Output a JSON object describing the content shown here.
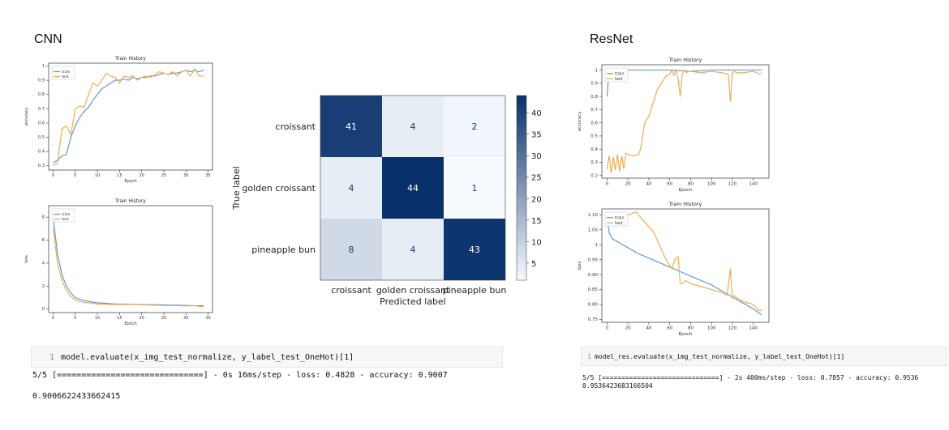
{
  "cnn": {
    "title": "CNN",
    "cell_line": "1",
    "code": "model.evaluate(x_img_test_normalize, y_label_test_OneHot)[1]",
    "output_progress": "5/5 [==============================] - 0s 16ms/step - loss: 0.4828 - accuracy: 0.9007",
    "output_result": "0.9006622433662415"
  },
  "resnet": {
    "title": "ResNet",
    "cell_line": "1",
    "code": "model_res.evaluate(x_img_test_normalize, y_label_test_OneHot)[1]",
    "output_progress": "5/5 [==============================] - 2s 400ms/step - loss: 0.7857 - accuracy: 0.9536",
    "output_result": "0.9536423683166504"
  },
  "colors": {
    "train": "#5b8fc9",
    "test": "#f0a64a"
  },
  "chart_data": [
    {
      "id": "cnn_acc",
      "type": "line",
      "title": "Train History",
      "xlabel": "Epoch",
      "ylabel": "accuracy",
      "xlim": [
        -1,
        36
      ],
      "ylim": [
        0.27,
        1.02
      ],
      "xticks": [
        0,
        5,
        10,
        15,
        20,
        25,
        30,
        35
      ],
      "yticks": [
        0.3,
        0.4,
        0.5,
        0.6,
        0.7,
        0.8,
        0.9,
        1.0
      ],
      "legend": "top-left",
      "series": [
        {
          "name": "train",
          "x": [
            0,
            1,
            2,
            3,
            4,
            5,
            6,
            7,
            8,
            9,
            10,
            11,
            12,
            13,
            14,
            15,
            16,
            17,
            18,
            19,
            20,
            21,
            22,
            23,
            24,
            25,
            26,
            27,
            28,
            29,
            30,
            31,
            32,
            33,
            34
          ],
          "y": [
            0.32,
            0.34,
            0.37,
            0.38,
            0.5,
            0.58,
            0.64,
            0.68,
            0.71,
            0.76,
            0.8,
            0.84,
            0.86,
            0.88,
            0.9,
            0.9,
            0.91,
            0.9,
            0.92,
            0.91,
            0.92,
            0.92,
            0.93,
            0.93,
            0.94,
            0.95,
            0.94,
            0.95,
            0.95,
            0.96,
            0.97,
            0.96,
            0.97,
            0.96,
            0.97
          ]
        },
        {
          "name": "test",
          "x": [
            0,
            1,
            2,
            3,
            4,
            5,
            6,
            7,
            8,
            9,
            10,
            11,
            12,
            13,
            14,
            15,
            16,
            17,
            18,
            19,
            20,
            21,
            22,
            23,
            24,
            25,
            26,
            27,
            28,
            29,
            30,
            31,
            32,
            33,
            34
          ],
          "y": [
            0.3,
            0.32,
            0.56,
            0.58,
            0.52,
            0.7,
            0.72,
            0.71,
            0.8,
            0.88,
            0.86,
            0.9,
            0.95,
            0.93,
            0.92,
            0.88,
            0.93,
            0.92,
            0.93,
            0.9,
            0.92,
            0.93,
            0.92,
            0.94,
            0.96,
            0.95,
            0.94,
            0.96,
            0.93,
            0.96,
            0.97,
            0.93,
            0.98,
            0.93,
            0.93
          ]
        }
      ]
    },
    {
      "id": "cnn_loss",
      "type": "line",
      "title": "Train History",
      "xlabel": "Epoch",
      "ylabel": "loss",
      "xlim": [
        -1,
        36
      ],
      "ylim": [
        -0.3,
        9
      ],
      "xticks": [
        0,
        5,
        10,
        15,
        20,
        25,
        30,
        35
      ],
      "yticks": [
        0,
        2,
        4,
        6,
        8
      ],
      "legend": "top-left",
      "series": [
        {
          "name": "train",
          "x": [
            0,
            1,
            2,
            3,
            4,
            5,
            6,
            7,
            8,
            9,
            10,
            12,
            14,
            16,
            18,
            20,
            22,
            24,
            26,
            28,
            30,
            32,
            34
          ],
          "y": [
            8.0,
            4.8,
            3.0,
            2.0,
            1.4,
            1.0,
            0.85,
            0.75,
            0.68,
            0.6,
            0.55,
            0.5,
            0.45,
            0.45,
            0.42,
            0.4,
            0.38,
            0.38,
            0.35,
            0.34,
            0.32,
            0.3,
            0.3
          ]
        },
        {
          "name": "test",
          "x": [
            0,
            1,
            2,
            3,
            4,
            5,
            6,
            7,
            8,
            9,
            10,
            12,
            14,
            16,
            18,
            20,
            22,
            24,
            26,
            28,
            30,
            32,
            34
          ],
          "y": [
            7.0,
            4.0,
            2.5,
            1.6,
            1.1,
            0.8,
            0.65,
            0.6,
            0.55,
            0.5,
            0.45,
            0.42,
            0.4,
            0.42,
            0.4,
            0.38,
            0.35,
            0.33,
            0.3,
            0.3,
            0.28,
            0.3,
            0.2
          ]
        }
      ]
    },
    {
      "id": "cnn_cm",
      "type": "heatmap",
      "xlabel": "Predicted label",
      "ylabel": "True label",
      "row_labels": [
        "croissant",
        "golden croissant",
        "pineapple bun"
      ],
      "col_labels": [
        "croissant",
        "golden croissant",
        "pineapple bun"
      ],
      "values": [
        [
          41,
          4,
          2
        ],
        [
          4,
          44,
          1
        ],
        [
          8,
          4,
          43
        ]
      ],
      "colorbar_range": [
        1,
        44
      ],
      "colorbar_ticks": [
        5,
        10,
        15,
        20,
        25,
        30,
        35,
        40
      ]
    },
    {
      "id": "res_acc",
      "type": "line",
      "title": "Train History",
      "xlabel": "Epoch",
      "ylabel": "accuracy",
      "xlim": [
        -5,
        155
      ],
      "ylim": [
        0.18,
        1.04
      ],
      "xticks": [
        0,
        20,
        40,
        60,
        80,
        100,
        120,
        140
      ],
      "yticks": [
        0.2,
        0.3,
        0.4,
        0.5,
        0.6,
        0.7,
        0.8,
        0.9,
        1.0
      ],
      "legend": "top-left",
      "series": [
        {
          "name": "train",
          "x": [
            0,
            2,
            4,
            10,
            20,
            40,
            60,
            80,
            100,
            120,
            140,
            148
          ],
          "y": [
            0.8,
            1.0,
            0.99,
            1.0,
            1.0,
            1.0,
            1.0,
            0.99,
            1.0,
            1.0,
            1.0,
            1.0
          ]
        },
        {
          "name": "test",
          "x": [
            0,
            2,
            4,
            6,
            8,
            10,
            12,
            14,
            16,
            18,
            20,
            25,
            30,
            32,
            34,
            36,
            40,
            44,
            48,
            52,
            56,
            60,
            62,
            64,
            66,
            68,
            70,
            72,
            74,
            76,
            78,
            80,
            90,
            100,
            110,
            116,
            118,
            120,
            122,
            124,
            130,
            140,
            146,
            148
          ],
          "y": [
            0.25,
            0.35,
            0.22,
            0.34,
            0.24,
            0.36,
            0.23,
            0.35,
            0.25,
            0.37,
            0.36,
            0.35,
            0.36,
            0.4,
            0.5,
            0.6,
            0.65,
            0.75,
            0.85,
            0.9,
            0.95,
            0.97,
            1.0,
            0.96,
            1.0,
            0.93,
            0.8,
            0.97,
            1.0,
            0.98,
            0.99,
            0.99,
            0.98,
            0.99,
            0.98,
            0.97,
            0.76,
            0.98,
            0.99,
            0.98,
            0.98,
            0.99,
            0.97,
            0.98
          ]
        }
      ]
    },
    {
      "id": "res_loss",
      "type": "line",
      "title": "Train History",
      "xlabel": "Epoch",
      "ylabel": "loss",
      "xlim": [
        -5,
        155
      ],
      "ylim": [
        0.74,
        1.12
      ],
      "xticks": [
        0,
        20,
        40,
        60,
        80,
        100,
        120,
        140
      ],
      "yticks": [
        0.75,
        0.8,
        0.85,
        0.9,
        0.95,
        1.0,
        1.05,
        1.1
      ],
      "legend": "top-left",
      "series": [
        {
          "name": "train",
          "x": [
            0,
            2,
            5,
            10,
            20,
            30,
            40,
            50,
            60,
            70,
            80,
            90,
            100,
            110,
            120,
            130,
            140,
            148
          ],
          "y": [
            1.1,
            1.04,
            1.02,
            1.01,
            0.99,
            0.97,
            0.955,
            0.94,
            0.925,
            0.91,
            0.895,
            0.88,
            0.865,
            0.845,
            0.825,
            0.805,
            0.785,
            0.765
          ]
        },
        {
          "name": "test",
          "x": [
            0,
            2,
            5,
            10,
            15,
            20,
            28,
            30,
            35,
            40,
            45,
            50,
            55,
            60,
            62,
            65,
            68,
            70,
            72,
            75,
            80,
            90,
            100,
            110,
            115,
            118,
            120,
            122,
            125,
            130,
            140,
            145,
            148
          ],
          "y": [
            1.1,
            1.09,
            1.1,
            1.09,
            1.1,
            1.1,
            1.11,
            1.1,
            1.08,
            1.06,
            1.04,
            1.0,
            0.96,
            0.93,
            0.92,
            0.95,
            0.96,
            0.87,
            0.87,
            0.88,
            0.87,
            0.86,
            0.85,
            0.84,
            0.83,
            0.92,
            0.82,
            0.83,
            0.82,
            0.81,
            0.8,
            0.78,
            0.78
          ]
        }
      ]
    }
  ]
}
